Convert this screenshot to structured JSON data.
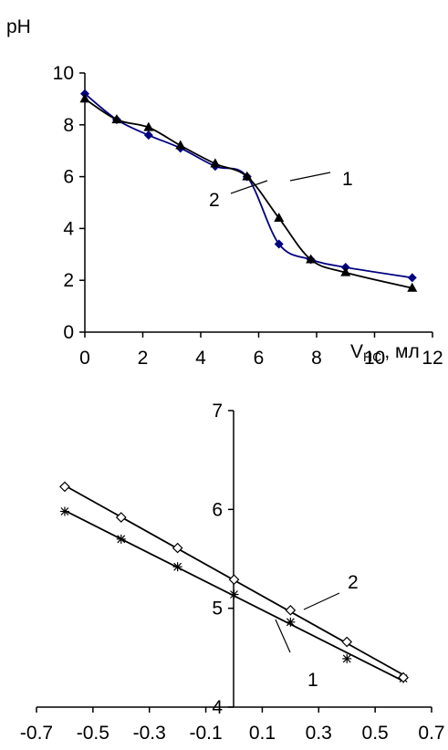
{
  "chart_data": [
    {
      "type": "line",
      "ylabel": "pH",
      "xlabel_main": "V",
      "xlabel_sub": "HCl",
      "xlabel_tail": ", мл",
      "xlim": [
        0,
        12
      ],
      "ylim": [
        0,
        10
      ],
      "x_ticks": [
        "0",
        "2",
        "4",
        "6",
        "8",
        "10",
        "12"
      ],
      "y_ticks": [
        "0",
        "2",
        "4",
        "6",
        "8",
        "10"
      ],
      "grid": false,
      "series": [
        {
          "name": "1",
          "color": "#000080",
          "marker": "diamond",
          "x": [
            0,
            1.1,
            2.2,
            3.3,
            4.5,
            5.6,
            6.7,
            7.8,
            9.0,
            11.3
          ],
          "y": [
            9.2,
            8.2,
            7.6,
            7.1,
            6.4,
            6.0,
            3.4,
            2.8,
            2.5,
            2.1
          ]
        },
        {
          "name": "2",
          "color": "#000000",
          "marker": "triangle",
          "x": [
            0,
            1.1,
            2.2,
            3.3,
            4.5,
            5.6,
            6.7,
            7.8,
            9.0,
            11.3
          ],
          "y": [
            9.0,
            8.2,
            7.9,
            7.2,
            6.5,
            6.0,
            4.4,
            2.8,
            2.3,
            1.7
          ]
        }
      ],
      "annotations": [
        "1",
        "2"
      ]
    },
    {
      "type": "line",
      "xlim": [
        -0.7,
        0.7
      ],
      "ylim": [
        4,
        7
      ],
      "x_ticks": [
        "-0.7",
        "-0.5",
        "-0.3",
        "-0.1",
        "0.1",
        "0.3",
        "0.5",
        "0.7"
      ],
      "y_ticks": [
        "4",
        "5",
        "6",
        "7"
      ],
      "grid": false,
      "series": [
        {
          "name": "1",
          "color": "#000000",
          "marker": "asterisk",
          "x": [
            -0.6,
            -0.4,
            -0.2,
            0.0,
            0.2,
            0.4,
            0.6
          ],
          "y": [
            5.98,
            5.7,
            5.42,
            5.14,
            4.86,
            4.49,
            4.29
          ]
        },
        {
          "name": "2",
          "color": "#000000",
          "marker": "open-diamond",
          "x": [
            -0.6,
            -0.4,
            -0.2,
            0.0,
            0.2,
            0.4,
            0.6
          ],
          "y": [
            6.23,
            5.92,
            5.61,
            5.29,
            4.98,
            4.66,
            4.3
          ]
        }
      ],
      "annotations": [
        "1",
        "2"
      ]
    }
  ]
}
